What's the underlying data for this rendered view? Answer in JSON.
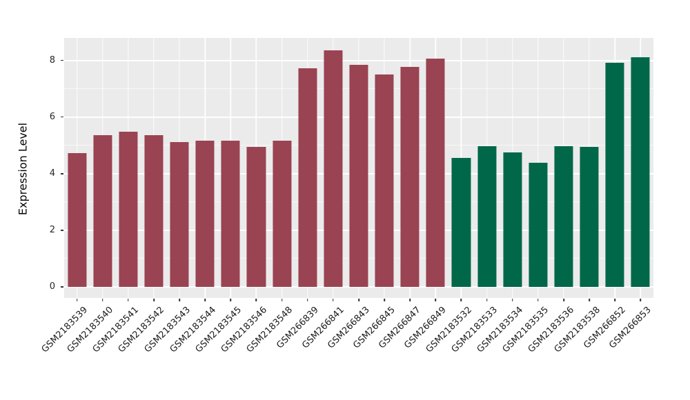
{
  "style": {
    "figure_bg": "#FFFFFF",
    "plot_bg": "#EBEBEB",
    "gridline_color": "#FFFFFF",
    "tick_mark_color": "#333333",
    "tick_label_color": "#262626",
    "axis_title_color": "#000000"
  },
  "chart_data": {
    "type": "bar",
    "title": "",
    "xlabel": "",
    "ylabel": "Expression Level",
    "ylim": [
      0,
      8.8
    ],
    "y_major_ticks": [
      0,
      2,
      4,
      6,
      8
    ],
    "y_minor_gridlines": [
      1,
      3,
      5,
      7
    ],
    "grid": true,
    "legend_position": "none",
    "categories": [
      "GSM2183539",
      "GSM2183540",
      "GSM2183541",
      "GSM2183542",
      "GSM2183543",
      "GSM2183544",
      "GSM2183545",
      "GSM2183546",
      "GSM2183548",
      "GSM266839",
      "GSM266841",
      "GSM266843",
      "GSM266845",
      "GSM266847",
      "GSM266849",
      "GSM2183532",
      "GSM2183533",
      "GSM2183534",
      "GSM2183535",
      "GSM2183536",
      "GSM2183538",
      "GSM266852",
      "GSM266853"
    ],
    "values": [
      4.74,
      5.37,
      5.49,
      5.37,
      5.13,
      5.18,
      5.18,
      4.94,
      5.18,
      7.74,
      8.37,
      7.84,
      7.5,
      7.77,
      8.07,
      4.55,
      4.98,
      4.76,
      4.38,
      4.98,
      4.95,
      7.92,
      8.12
    ],
    "bar_groups": [
      "groupA",
      "groupA",
      "groupA",
      "groupA",
      "groupA",
      "groupA",
      "groupA",
      "groupA",
      "groupA",
      "groupA",
      "groupA",
      "groupA",
      "groupA",
      "groupA",
      "groupA",
      "groupB",
      "groupB",
      "groupB",
      "groupB",
      "groupB",
      "groupB",
      "groupB",
      "groupB"
    ],
    "group_colors": {
      "groupA": "#9A4352",
      "groupB": "#006849"
    }
  }
}
